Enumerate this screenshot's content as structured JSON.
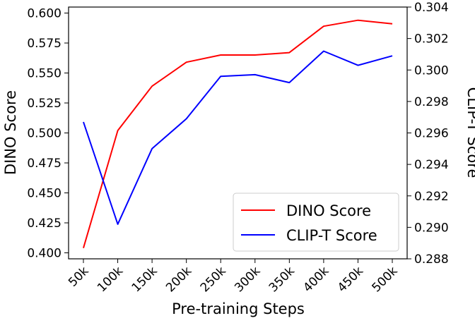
{
  "chart_data": {
    "type": "line",
    "categories": [
      "50k",
      "100k",
      "150k",
      "200k",
      "250k",
      "300k",
      "350k",
      "400k",
      "450k",
      "500k"
    ],
    "xlabel": "Pre-training Steps",
    "left_axis": {
      "label": "DINO Score",
      "ylim": [
        0.395,
        0.605
      ],
      "ticks": [
        "0.400",
        "0.425",
        "0.450",
        "0.475",
        "0.500",
        "0.525",
        "0.550",
        "0.575",
        "0.600"
      ]
    },
    "right_axis": {
      "label": "CLIP-T Score",
      "ylim": [
        0.288,
        0.304
      ],
      "ticks": [
        "0.288",
        "0.290",
        "0.292",
        "0.294",
        "0.296",
        "0.298",
        "0.300",
        "0.302",
        "0.304"
      ]
    },
    "series": [
      {
        "name": "DINO Score",
        "axis": "left",
        "color": "#ff0000",
        "values": [
          0.404,
          0.502,
          0.539,
          0.559,
          0.565,
          0.565,
          0.567,
          0.589,
          0.594,
          0.591
        ]
      },
      {
        "name": "CLIP-T Score",
        "axis": "right",
        "color": "#0000ff",
        "values": [
          0.2967,
          0.2902,
          0.295,
          0.2969,
          0.2996,
          0.2997,
          0.2992,
          0.3012,
          0.3003,
          0.3009
        ]
      }
    ],
    "legend": {
      "position": "bottom-right",
      "items": [
        "DINO Score",
        "CLIP-T Score"
      ]
    },
    "grid": false
  }
}
